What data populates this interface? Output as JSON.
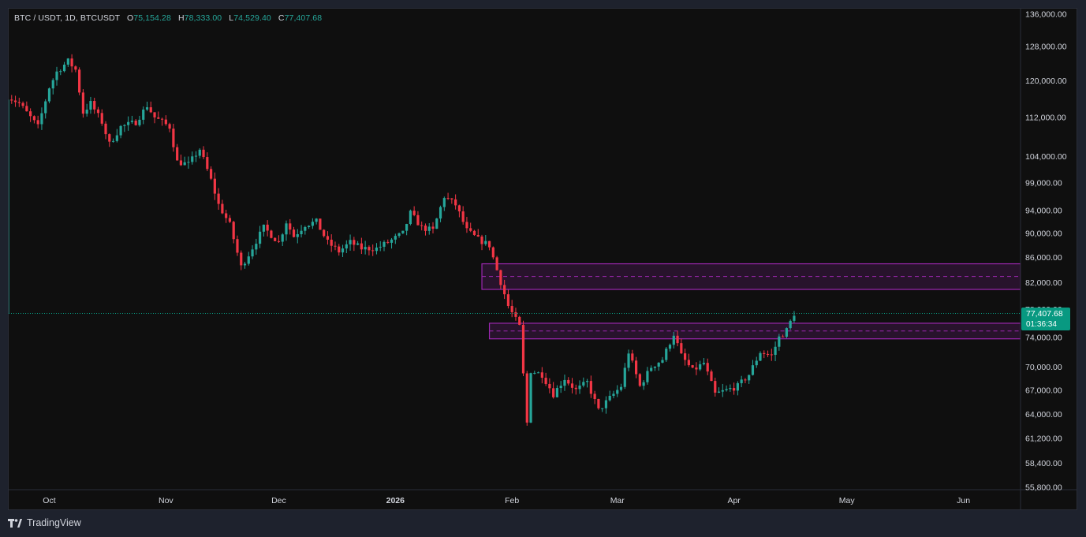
{
  "legend": {
    "symbol": "BTC / USDT, 1D, BTCUSDT",
    "o_label": "O",
    "o_value": "75,154.28",
    "h_label": "H",
    "h_value": "78,333.00",
    "l_label": "L",
    "l_value": "74,529.40",
    "c_label": "C",
    "c_value": "77,407.68"
  },
  "last_price": {
    "value": "77,407.68",
    "countdown": "01:36:34"
  },
  "footer": {
    "brand": "TradingView"
  },
  "colors": {
    "up": "#26a69a",
    "down": "#f23645",
    "zone": "#9c27b0",
    "text": "#d1d4dc",
    "bg": "#0f0f0f",
    "price_line": "#089981"
  },
  "chart_data": {
    "type": "candlestick",
    "scale": "log",
    "ylim": [
      55800,
      136000
    ],
    "y_ticks": [
      "136,000.00",
      "128,000.00",
      "120,000.00",
      "112,000.00",
      "104,000.00",
      "99,000.00",
      "94,000.00",
      "90,000.00",
      "86,000.00",
      "82,000.00",
      "78,000.00",
      "74,000.00",
      "70,000.00",
      "67,000.00",
      "64,000.00",
      "61,200.00",
      "58,400.00",
      "55,800.00"
    ],
    "x_ticks": [
      "Oct",
      "Nov",
      "Dec",
      "2026",
      "Feb",
      "Mar",
      "Apr",
      "May",
      "Jun"
    ],
    "last_close": 77407.68,
    "zones": [
      {
        "start_date": "2026-01-24",
        "top": 85000,
        "bottom": 81000,
        "mid": 83000
      },
      {
        "start_date": "2026-01-26",
        "top": 76000,
        "bottom": 73800,
        "mid": 74900
      }
    ],
    "closes": [
      {
        "date": "2025-09-20",
        "close": 116500
      },
      {
        "date": "2025-09-23",
        "close": 115000
      },
      {
        "date": "2025-09-26",
        "close": 112000
      },
      {
        "date": "2025-09-28",
        "close": 110000
      },
      {
        "date": "2025-10-01",
        "close": 118500
      },
      {
        "date": "2025-10-03",
        "close": 122000
      },
      {
        "date": "2025-10-06",
        "close": 124500
      },
      {
        "date": "2025-10-08",
        "close": 122500
      },
      {
        "date": "2025-10-10",
        "close": 113000
      },
      {
        "date": "2025-10-12",
        "close": 115000
      },
      {
        "date": "2025-10-15",
        "close": 111000
      },
      {
        "date": "2025-10-17",
        "close": 106500
      },
      {
        "date": "2025-10-20",
        "close": 110000
      },
      {
        "date": "2025-10-24",
        "close": 111000
      },
      {
        "date": "2025-10-27",
        "close": 114500
      },
      {
        "date": "2025-10-29",
        "close": 112000
      },
      {
        "date": "2025-11-02",
        "close": 110000
      },
      {
        "date": "2025-11-04",
        "close": 103000
      },
      {
        "date": "2025-11-07",
        "close": 102500
      },
      {
        "date": "2025-11-10",
        "close": 105500
      },
      {
        "date": "2025-11-13",
        "close": 99500
      },
      {
        "date": "2025-11-15",
        "close": 95000
      },
      {
        "date": "2025-11-18",
        "close": 91500
      },
      {
        "date": "2025-11-21",
        "close": 84500
      },
      {
        "date": "2025-11-23",
        "close": 86500
      },
      {
        "date": "2025-11-27",
        "close": 91000
      },
      {
        "date": "2025-12-01",
        "close": 88500
      },
      {
        "date": "2025-12-03",
        "close": 92000
      },
      {
        "date": "2025-12-05",
        "close": 89500
      },
      {
        "date": "2025-12-08",
        "close": 91500
      },
      {
        "date": "2025-12-11",
        "close": 92000
      },
      {
        "date": "2025-12-14",
        "close": 88500
      },
      {
        "date": "2025-12-17",
        "close": 87000
      },
      {
        "date": "2025-12-20",
        "close": 88500
      },
      {
        "date": "2025-12-23",
        "close": 87500
      },
      {
        "date": "2025-12-27",
        "close": 87500
      },
      {
        "date": "2025-12-30",
        "close": 88500
      },
      {
        "date": "2026-01-03",
        "close": 90000
      },
      {
        "date": "2026-01-05",
        "close": 93500
      },
      {
        "date": "2026-01-08",
        "close": 91000
      },
      {
        "date": "2026-01-11",
        "close": 90500
      },
      {
        "date": "2026-01-14",
        "close": 96500
      },
      {
        "date": "2026-01-17",
        "close": 95000
      },
      {
        "date": "2026-01-20",
        "close": 90500
      },
      {
        "date": "2026-01-23",
        "close": 89000
      },
      {
        "date": "2026-01-26",
        "close": 88000
      },
      {
        "date": "2026-01-28",
        "close": 84000
      },
      {
        "date": "2026-01-31",
        "close": 78500
      },
      {
        "date": "2026-02-03",
        "close": 75500
      },
      {
        "date": "2026-02-05",
        "close": 63000
      },
      {
        "date": "2026-02-06",
        "close": 69500
      },
      {
        "date": "2026-02-09",
        "close": 69000
      },
      {
        "date": "2026-02-12",
        "close": 66500
      },
      {
        "date": "2026-02-15",
        "close": 68500
      },
      {
        "date": "2026-02-18",
        "close": 67000
      },
      {
        "date": "2026-02-21",
        "close": 68000
      },
      {
        "date": "2026-02-24",
        "close": 64500
      },
      {
        "date": "2026-02-27",
        "close": 66000
      },
      {
        "date": "2026-03-02",
        "close": 67500
      },
      {
        "date": "2026-03-04",
        "close": 72000
      },
      {
        "date": "2026-03-07",
        "close": 67500
      },
      {
        "date": "2026-03-10",
        "close": 70000
      },
      {
        "date": "2026-03-13",
        "close": 71000
      },
      {
        "date": "2026-03-16",
        "close": 74500
      },
      {
        "date": "2026-03-18",
        "close": 71500
      },
      {
        "date": "2026-03-21",
        "close": 69500
      },
      {
        "date": "2026-03-24",
        "close": 70500
      },
      {
        "date": "2026-03-27",
        "close": 66500
      },
      {
        "date": "2026-03-30",
        "close": 67000
      },
      {
        "date": "2026-04-02",
        "close": 67500
      },
      {
        "date": "2026-04-05",
        "close": 69000
      },
      {
        "date": "2026-04-08",
        "close": 72000
      },
      {
        "date": "2026-04-11",
        "close": 71500
      },
      {
        "date": "2026-04-13",
        "close": 74000
      },
      {
        "date": "2026-04-15",
        "close": 75000
      },
      {
        "date": "2026-04-17",
        "close": 77407.68
      }
    ]
  }
}
